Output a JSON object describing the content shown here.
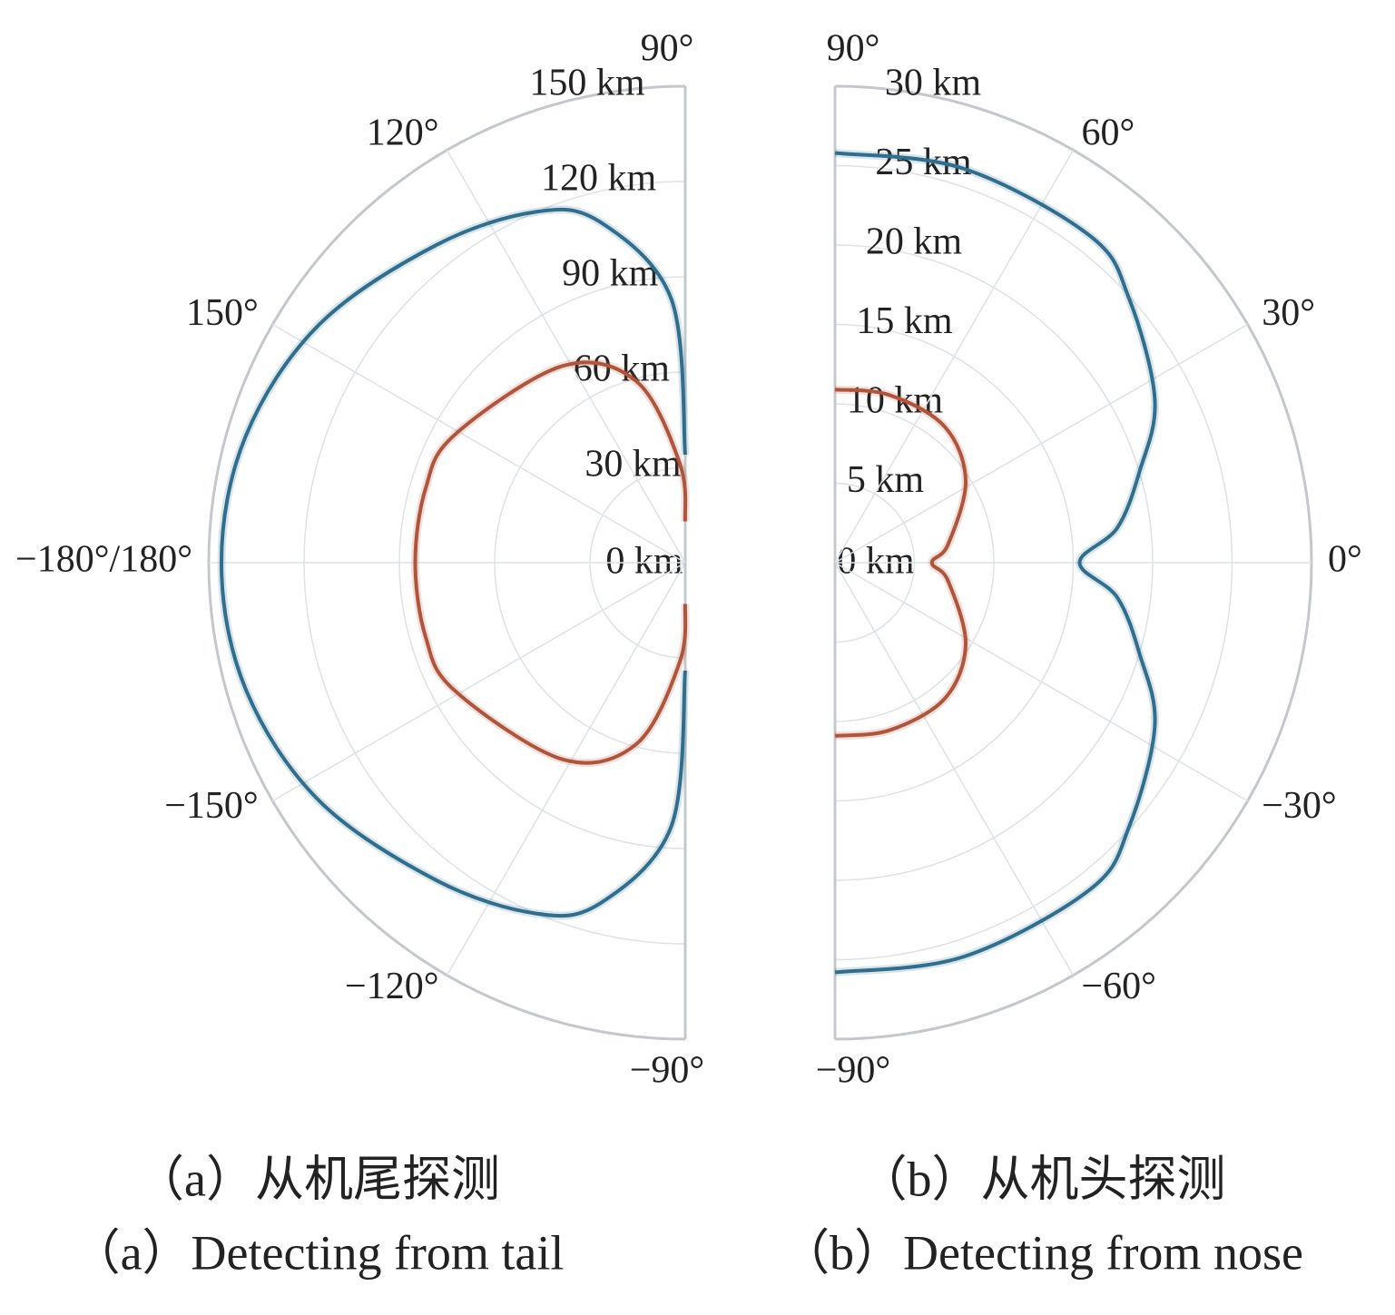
{
  "chart_data": [
    {
      "type": "polar",
      "caption_cn": "（a）从机尾探测",
      "caption_en": "（a）Detecting from tail",
      "thetalim": [
        90,
        270
      ],
      "rlim": [
        0,
        150
      ],
      "rticks": [
        {
          "value": 0,
          "label": "0 km"
        },
        {
          "value": 30,
          "label": "30 km"
        },
        {
          "value": 60,
          "label": "60 km"
        },
        {
          "value": 90,
          "label": "90 km"
        },
        {
          "value": 120,
          "label": "120 km"
        },
        {
          "value": 150,
          "label": "150 km"
        }
      ],
      "thetaticks": [
        {
          "value": 90,
          "label": "90°"
        },
        {
          "value": 120,
          "label": "120°"
        },
        {
          "value": 150,
          "label": "150°"
        },
        {
          "value": 180,
          "label": "−180°/180°"
        },
        {
          "value": -150,
          "label": "−150°"
        },
        {
          "value": -120,
          "label": "−120°"
        },
        {
          "value": -90,
          "label": "−90°"
        }
      ],
      "grid": true,
      "series": [
        {
          "color": "#2f6e8c",
          "theta": [
            90,
            93,
            104,
            113,
            128,
            147,
            164,
            180,
            -164,
            -147,
            -128,
            -113,
            -104,
            -93,
            -90
          ],
          "values": [
            34,
            83,
            110.5,
            120,
            127,
            137.5,
            144,
            146,
            144,
            137.5,
            127,
            120,
            110.5,
            83,
            34
          ]
        },
        {
          "color": "#b0553c",
          "theta": [
            90,
            93,
            105,
            122,
            151,
            164,
            180,
            -164,
            -151,
            -122,
            -105,
            -93,
            -90
          ],
          "values": [
            13,
            31,
            59,
            73,
            83,
            85,
            85,
            85,
            83,
            73,
            59,
            31,
            13
          ]
        }
      ]
    },
    {
      "type": "polar",
      "caption_cn": "（b）从机头探测",
      "caption_en": "（b）Detecting from nose",
      "thetalim": [
        -90,
        90
      ],
      "rlim": [
        0,
        30
      ],
      "rticks": [
        {
          "value": 0,
          "label": "0 km"
        },
        {
          "value": 5,
          "label": "5 km"
        },
        {
          "value": 10,
          "label": "10 km"
        },
        {
          "value": 15,
          "label": "15 km"
        },
        {
          "value": 20,
          "label": "20 km"
        },
        {
          "value": 25,
          "label": "25 km"
        },
        {
          "value": 30,
          "label": "30 km"
        }
      ],
      "thetaticks": [
        {
          "value": 90,
          "label": "90°"
        },
        {
          "value": 60,
          "label": "60°"
        },
        {
          "value": 30,
          "label": "30°"
        },
        {
          "value": 0,
          "label": "0°"
        },
        {
          "value": -30,
          "label": "−30°"
        },
        {
          "value": -60,
          "label": "−60°"
        },
        {
          "value": -90,
          "label": "−90°"
        }
      ],
      "grid": true,
      "series": [
        {
          "color": "#2f6e8c",
          "theta": [
            90,
            72,
            52,
            42,
            27,
            16.6,
            7,
            0,
            -7,
            -16.6,
            -27,
            -42,
            -52,
            -72,
            -90
          ],
          "values": [
            25.8,
            26.1,
            26.1,
            24.9,
            22.6,
            20,
            17.9,
            15.4,
            17.9,
            20,
            22.6,
            24.9,
            26.1,
            26.1,
            25.8
          ]
        },
        {
          "color": "#b0553c",
          "theta": [
            90,
            72,
            51,
            32,
            9,
            0,
            -9,
            -32,
            -51,
            -72,
            -90
          ],
          "values": [
            10.9,
            11.1,
            11,
            9.7,
            7.2,
            6.1,
            7.2,
            9.7,
            11,
            11.1,
            10.9
          ]
        }
      ]
    }
  ]
}
